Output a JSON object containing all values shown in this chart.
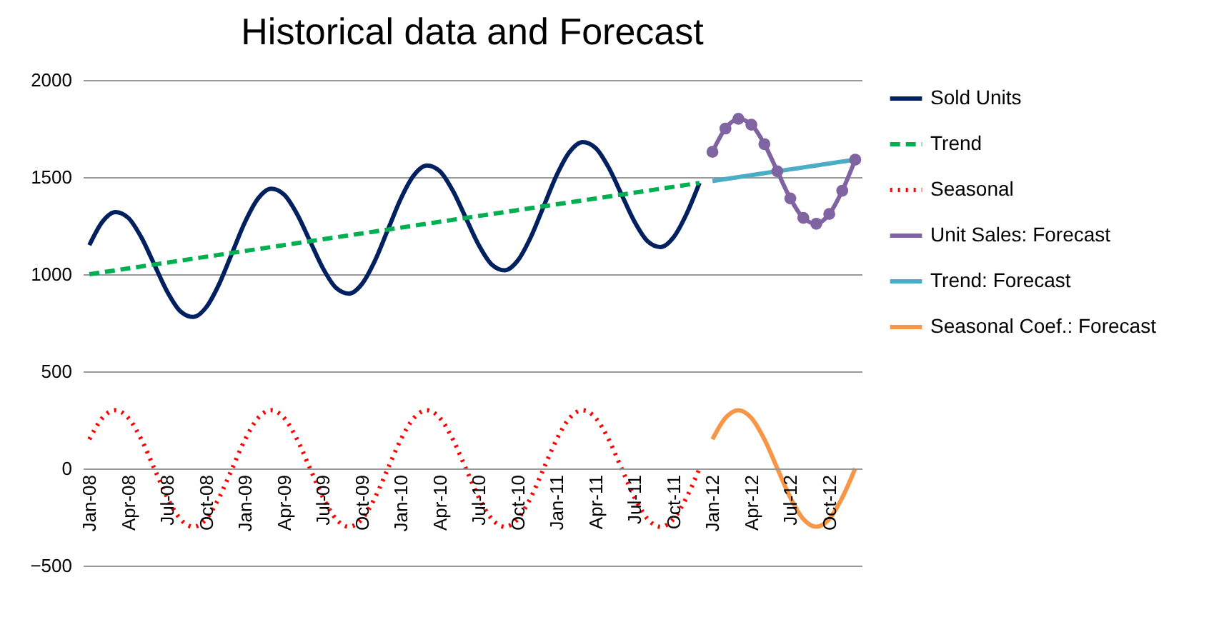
{
  "chart_data": {
    "type": "line",
    "title": "Historical data and Forecast",
    "categories": [
      "Jan-08",
      null,
      null,
      "Apr-08",
      null,
      null,
      "Jul-08",
      null,
      null,
      "Oct-08",
      null,
      null,
      "Jan-09",
      null,
      null,
      "Apr-09",
      null,
      null,
      "Jul-09",
      null,
      null,
      "Oct-09",
      null,
      null,
      "Jan-10",
      null,
      null,
      "Apr-10",
      null,
      null,
      "Jul-10",
      null,
      null,
      "Oct-10",
      null,
      null,
      "Jan-11",
      null,
      null,
      "Apr-11",
      null,
      null,
      "Jul-11",
      null,
      null,
      "Oct-11",
      null,
      null,
      "Jan-12",
      null,
      null,
      "Apr-12",
      null,
      null,
      "Jul-12",
      null,
      null,
      "Oct-12",
      null,
      null
    ],
    "series": [
      {
        "name": "Sold Units",
        "color": "#002060",
        "type": "line",
        "line_style": "solid",
        "values": [
          1150,
          1270,
          1320,
          1290,
          1190,
          1050,
          910,
          810,
          780,
          830,
          950,
          1110,
          1270,
          1390,
          1440,
          1410,
          1310,
          1170,
          1030,
          930,
          900,
          950,
          1070,
          1230,
          1390,
          1510,
          1560,
          1530,
          1430,
          1290,
          1150,
          1050,
          1020,
          1070,
          1190,
          1350,
          1510,
          1630,
          1680,
          1650,
          1550,
          1410,
          1270,
          1170,
          1140,
          1190,
          1310,
          1470,
          null,
          null,
          null,
          null,
          null,
          null,
          null,
          null,
          null,
          null,
          null,
          null
        ]
      },
      {
        "name": "Trend",
        "color": "#00b050",
        "type": "line",
        "line_style": "dashed",
        "values": [
          1000,
          1010,
          1020,
          1030,
          1040,
          1050,
          1060,
          1070,
          1080,
          1090,
          1100,
          1110,
          1120,
          1130,
          1140,
          1150,
          1160,
          1170,
          1180,
          1190,
          1200,
          1210,
          1220,
          1230,
          1240,
          1250,
          1260,
          1270,
          1280,
          1290,
          1300,
          1310,
          1320,
          1330,
          1340,
          1350,
          1360,
          1370,
          1380,
          1390,
          1400,
          1410,
          1420,
          1430,
          1440,
          1450,
          1460,
          1470,
          null,
          null,
          null,
          null,
          null,
          null,
          null,
          null,
          null,
          null,
          null,
          null
        ]
      },
      {
        "name": "Seasonal",
        "color": "#ff0000",
        "type": "line",
        "line_style": "dotted",
        "values": [
          150,
          260,
          300,
          260,
          150,
          0,
          -150,
          -260,
          -300,
          -260,
          -150,
          0,
          150,
          260,
          300,
          260,
          150,
          0,
          -150,
          -260,
          -300,
          -260,
          -150,
          0,
          150,
          260,
          300,
          260,
          150,
          0,
          -150,
          -260,
          -300,
          -260,
          -150,
          0,
          150,
          260,
          300,
          260,
          150,
          0,
          -150,
          -260,
          -300,
          -260,
          -150,
          0,
          null,
          null,
          null,
          null,
          null,
          null,
          null,
          null,
          null,
          null,
          null,
          null
        ]
      },
      {
        "name": "Unit Sales: Forecast",
        "color": "#8064a2",
        "type": "line",
        "line_style": "solid",
        "marker": "circle",
        "values": [
          null,
          null,
          null,
          null,
          null,
          null,
          null,
          null,
          null,
          null,
          null,
          null,
          null,
          null,
          null,
          null,
          null,
          null,
          null,
          null,
          null,
          null,
          null,
          null,
          null,
          null,
          null,
          null,
          null,
          null,
          null,
          null,
          null,
          null,
          null,
          null,
          null,
          null,
          null,
          null,
          null,
          null,
          null,
          null,
          null,
          null,
          null,
          null,
          1630,
          1750,
          1800,
          1770,
          1670,
          1530,
          1390,
          1290,
          1260,
          1310,
          1430,
          1590
        ]
      },
      {
        "name": "Trend: Forecast",
        "color": "#4bacc6",
        "type": "line",
        "line_style": "solid",
        "values": [
          null,
          null,
          null,
          null,
          null,
          null,
          null,
          null,
          null,
          null,
          null,
          null,
          null,
          null,
          null,
          null,
          null,
          null,
          null,
          null,
          null,
          null,
          null,
          null,
          null,
          null,
          null,
          null,
          null,
          null,
          null,
          null,
          null,
          null,
          null,
          null,
          null,
          null,
          null,
          null,
          null,
          null,
          null,
          null,
          null,
          null,
          null,
          null,
          1480,
          1490,
          1500,
          1510,
          1520,
          1530,
          1540,
          1550,
          1560,
          1570,
          1580,
          1590
        ]
      },
      {
        "name": "Seasonal Coef.: Forecast",
        "color": "#f79646",
        "type": "line",
        "line_style": "solid",
        "values": [
          null,
          null,
          null,
          null,
          null,
          null,
          null,
          null,
          null,
          null,
          null,
          null,
          null,
          null,
          null,
          null,
          null,
          null,
          null,
          null,
          null,
          null,
          null,
          null,
          null,
          null,
          null,
          null,
          null,
          null,
          null,
          null,
          null,
          null,
          null,
          null,
          null,
          null,
          null,
          null,
          null,
          null,
          null,
          null,
          null,
          null,
          null,
          null,
          150,
          260,
          300,
          260,
          150,
          0,
          -150,
          -260,
          -300,
          -260,
          -150,
          0
        ]
      }
    ],
    "ylim": [
      -500,
      2000
    ],
    "yticks": [
      -500,
      0,
      500,
      1000,
      1500,
      2000
    ],
    "grid": "y",
    "legend": "right"
  }
}
